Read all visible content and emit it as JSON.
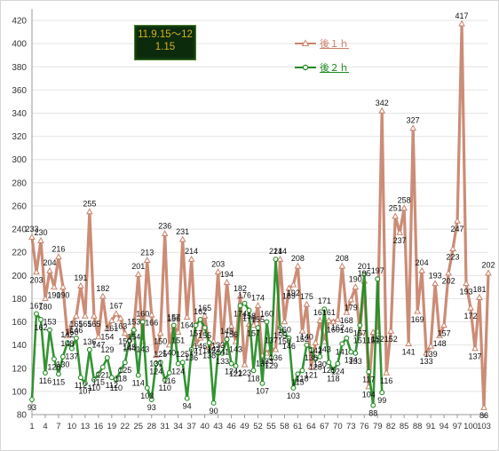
{
  "header": {
    "date_line1": "11.9.15〜12",
    "date_line2": "1.15"
  },
  "chart_data": {
    "type": "line",
    "title": "",
    "xlabel": "",
    "ylabel": "",
    "ylim": [
      80,
      430
    ],
    "yticks": [
      80,
      100,
      120,
      140,
      160,
      180,
      200,
      220,
      240,
      260,
      280,
      300,
      320,
      340,
      360,
      380,
      400,
      420
    ],
    "xlim": [
      1,
      104
    ],
    "xticks": [
      1,
      4,
      7,
      10,
      13,
      16,
      19,
      22,
      25,
      28,
      31,
      34,
      37,
      40,
      43,
      46,
      49,
      52,
      55,
      58,
      61,
      64,
      67,
      70,
      73,
      76,
      79,
      82,
      85,
      88,
      91,
      94,
      97,
      100,
      103
    ],
    "grid": "horizontal",
    "legend_position": "top-center",
    "series": [
      {
        "name": "後１ｈ",
        "color": "#c8826a",
        "marker": "triangle",
        "points": [
          [
            1,
            233
          ],
          [
            2,
            203
          ],
          [
            3,
            230
          ],
          [
            4,
            180
          ],
          [
            5,
            204
          ],
          [
            6,
            190
          ],
          [
            7,
            216
          ],
          [
            8,
            190
          ],
          [
            9,
            148
          ],
          [
            10,
            158
          ],
          [
            11,
            165
          ],
          [
            12,
            191
          ],
          [
            13,
            165
          ],
          [
            14,
            255
          ],
          [
            15,
            165
          ],
          [
            16,
            147
          ],
          [
            17,
            182
          ],
          [
            18,
            154
          ],
          [
            19,
            161
          ],
          [
            20,
            167
          ],
          [
            21,
            163
          ],
          [
            22,
            150
          ],
          [
            23,
            145
          ],
          [
            24,
            154
          ],
          [
            25,
            201
          ],
          [
            26,
            143
          ],
          [
            27,
            213
          ],
          [
            28,
            166
          ],
          [
            29,
            131
          ],
          [
            30,
            150
          ],
          [
            31,
            236
          ],
          [
            32,
            140
          ],
          [
            33,
            156
          ],
          [
            34,
            151
          ],
          [
            35,
            231
          ],
          [
            36,
            164
          ],
          [
            37,
            214
          ],
          [
            38,
            141
          ],
          [
            39,
            146
          ],
          [
            40,
            165
          ],
          [
            41,
            138
          ],
          [
            42,
            143
          ],
          [
            43,
            203
          ],
          [
            44,
            141
          ],
          [
            45,
            194
          ],
          [
            46,
            156
          ],
          [
            47,
            143
          ],
          [
            48,
            182
          ],
          [
            49,
            123
          ],
          [
            50,
            158
          ],
          [
            51,
            157
          ],
          [
            52,
            174
          ],
          [
            53,
            131
          ],
          [
            54,
            133
          ],
          [
            55,
            137
          ],
          [
            56,
            136
          ],
          [
            57,
            214
          ],
          [
            58,
            160
          ],
          [
            59,
            189
          ],
          [
            60,
            192
          ],
          [
            61,
            208
          ],
          [
            62,
            152
          ],
          [
            63,
            175
          ],
          [
            64,
            121
          ],
          [
            65,
            142
          ],
          [
            66,
            161
          ],
          [
            67,
            143
          ],
          [
            68,
            161
          ],
          [
            69,
            160
          ],
          [
            70,
            162
          ],
          [
            71,
            208
          ],
          [
            72,
            168
          ],
          [
            73,
            179
          ],
          [
            74,
            190
          ],
          [
            75,
            151
          ],
          [
            76,
            195
          ],
          [
            77,
            104
          ],
          [
            78,
            151
          ],
          [
            79,
            152
          ],
          [
            80,
            342
          ],
          [
            81,
            116
          ],
          [
            82,
            152
          ],
          [
            83,
            251
          ],
          [
            84,
            237
          ],
          [
            85,
            258
          ],
          [
            86,
            141
          ],
          [
            87,
            327
          ],
          [
            88,
            169
          ],
          [
            89,
            204
          ],
          [
            90,
            133
          ],
          [
            91,
            139
          ],
          [
            92,
            193
          ],
          [
            93,
            148
          ],
          [
            94,
            157
          ],
          [
            95,
            202
          ],
          [
            96,
            223
          ],
          [
            97,
            247
          ],
          [
            98,
            417
          ],
          [
            99,
            193
          ],
          [
            100,
            172
          ],
          [
            101,
            137
          ],
          [
            102,
            181
          ],
          [
            103,
            86
          ],
          [
            104,
            202
          ]
        ]
      },
      {
        "name": "後２ｈ",
        "color": "#228b22",
        "marker": "circle",
        "points": [
          [
            1,
            93
          ],
          [
            2,
            167
          ],
          [
            3,
            162
          ],
          [
            4,
            116
          ],
          [
            5,
            153
          ],
          [
            6,
            128
          ],
          [
            7,
            115
          ],
          [
            8,
            130
          ],
          [
            9,
            142
          ],
          [
            10,
            137
          ],
          [
            11,
            146
          ],
          [
            12,
            112
          ],
          [
            13,
            107
          ],
          [
            14,
            136
          ],
          [
            15,
            110
          ],
          [
            16,
            115
          ],
          [
            17,
            121
          ],
          [
            18,
            129
          ],
          [
            19,
            112
          ],
          [
            20,
            110
          ],
          [
            21,
            118
          ],
          [
            22,
            125
          ],
          [
            23,
            144
          ],
          [
            24,
            153
          ],
          [
            25,
            114
          ],
          [
            26,
            160
          ],
          [
            27,
            103
          ],
          [
            28,
            93
          ],
          [
            29,
            124
          ],
          [
            30,
            125
          ],
          [
            31,
            110
          ],
          [
            32,
            116
          ],
          [
            33,
            157
          ],
          [
            34,
            124
          ],
          [
            35,
            125
          ],
          [
            36,
            94
          ],
          [
            37,
            136
          ],
          [
            38,
            157
          ],
          [
            39,
            162
          ],
          [
            40,
            155
          ],
          [
            41,
            142
          ],
          [
            42,
            90
          ],
          [
            43,
            133
          ],
          [
            44,
            133
          ],
          [
            45,
            145
          ],
          [
            46,
            124
          ],
          [
            47,
            122
          ],
          [
            48,
            174
          ],
          [
            49,
            176
          ],
          [
            50,
            170
          ],
          [
            51,
            118
          ],
          [
            52,
            155
          ],
          [
            53,
            107
          ],
          [
            54,
            160
          ],
          [
            55,
            129
          ],
          [
            56,
            214
          ],
          [
            57,
            155
          ],
          [
            58,
            150
          ],
          [
            59,
            146
          ],
          [
            60,
            103
          ],
          [
            61,
            115
          ],
          [
            62,
            118
          ],
          [
            63,
            140
          ],
          [
            64,
            136
          ],
          [
            65,
            128
          ],
          [
            66,
            130
          ],
          [
            67,
            171
          ],
          [
            68,
            125
          ],
          [
            69,
            118
          ],
          [
            70,
            124
          ],
          [
            71,
            141
          ],
          [
            72,
            146
          ],
          [
            73,
            134
          ],
          [
            74,
            133
          ],
          [
            75,
            157
          ],
          [
            76,
            201
          ],
          [
            77,
            117
          ],
          [
            78,
            88
          ],
          [
            79,
            197
          ],
          [
            80,
            99
          ]
        ]
      }
    ],
    "annotations": []
  }
}
